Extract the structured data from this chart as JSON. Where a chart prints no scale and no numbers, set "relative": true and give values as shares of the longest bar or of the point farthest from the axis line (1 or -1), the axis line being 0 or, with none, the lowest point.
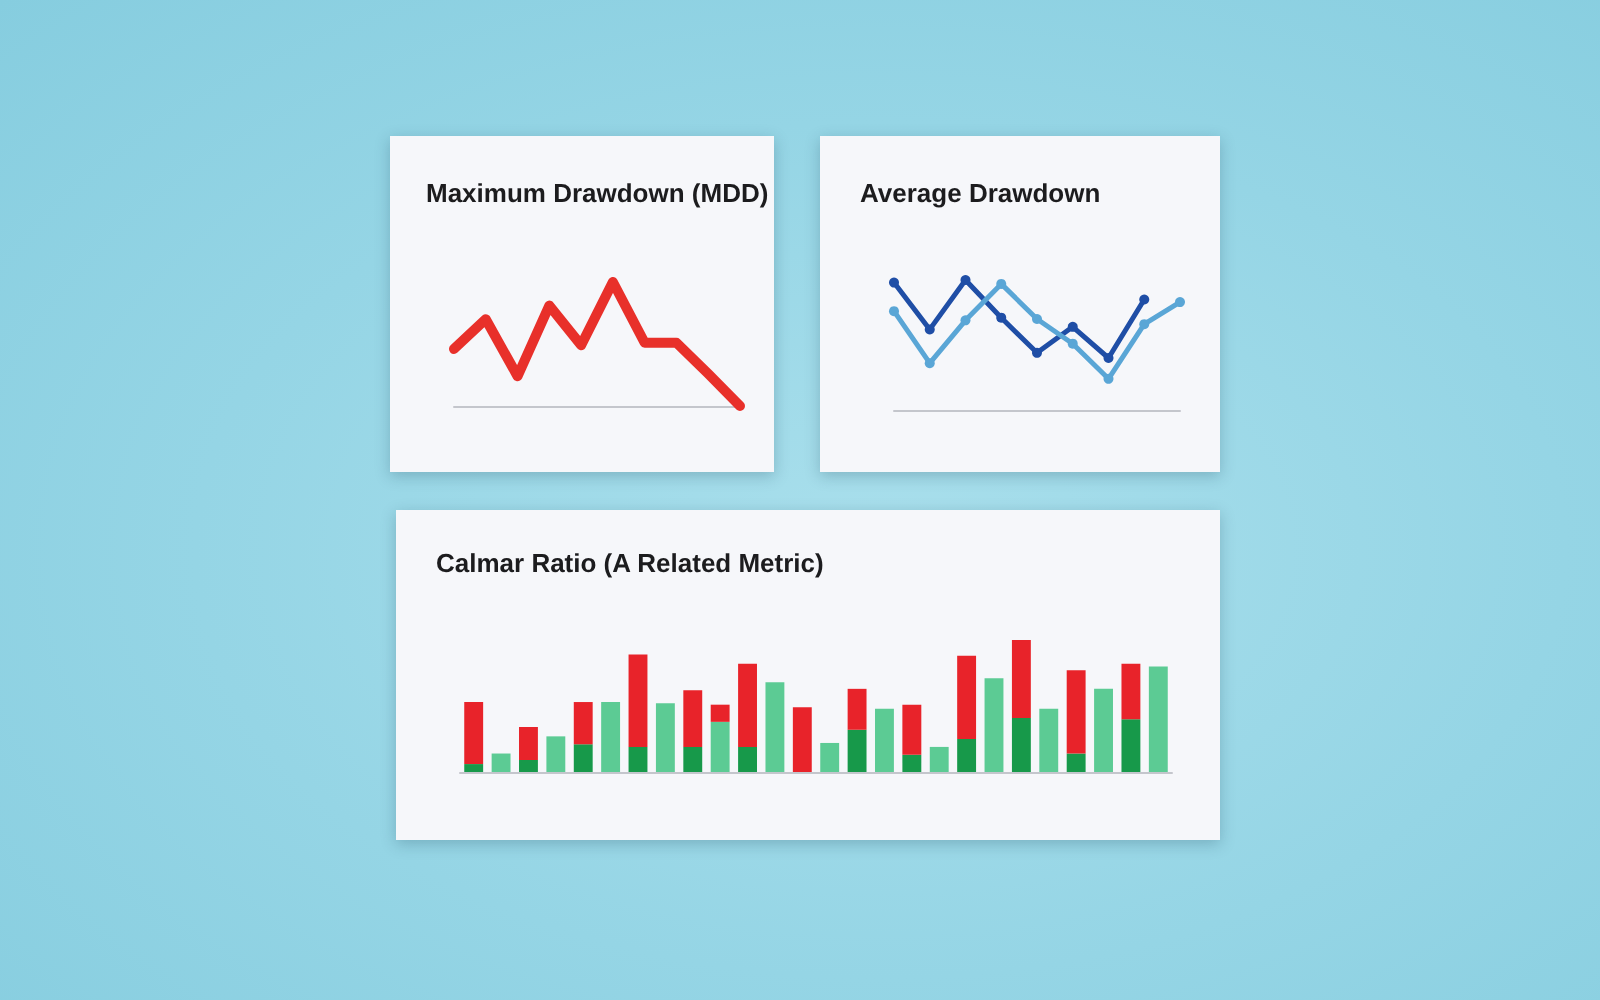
{
  "chart_data": [
    {
      "type": "line",
      "title": "Maximum Drawdown (MDD)",
      "relative": true,
      "categories": [
        null,
        null,
        null,
        null,
        null,
        null,
        null,
        null,
        null,
        null
      ],
      "color": "#e8302a",
      "values": [
        0.46,
        0.7,
        0.24,
        0.81,
        0.49,
        1,
        0.51,
        0.51,
        0.26,
        0
      ]
    },
    {
      "type": "line",
      "title": "Average Drawdown",
      "relative": true,
      "marker": "circle",
      "categories": [
        null,
        null,
        null,
        null,
        null,
        null,
        null,
        null,
        null
      ],
      "series": [
        {
          "color": "#1f4ea6",
          "values": [
            0.98,
            0.62,
            1,
            0.71,
            0.44,
            0.64,
            0.4,
            0.85,
            null
          ]
        },
        {
          "color": "#5aa6d6",
          "values": [
            0.76,
            0.36,
            0.69,
            0.97,
            0.7,
            0.51,
            0.24,
            0.66,
            0.83
          ]
        }
      ]
    },
    {
      "type": "bar",
      "title": "Calmar Ratio (A Related Metric)",
      "relative": true,
      "stacked": true,
      "categories": [
        null,
        null,
        null,
        null,
        null,
        null,
        null,
        null,
        null,
        null,
        null,
        null,
        null,
        null,
        null,
        null,
        null,
        null,
        null,
        null,
        null,
        null,
        null,
        null,
        null,
        null
      ],
      "series": [
        {
          "color": "#17994a",
          "values": [
            0.06,
            null,
            0.09,
            null,
            0.21,
            null,
            0.19,
            null,
            0.19,
            null,
            0.19,
            null,
            null,
            null,
            0.32,
            null,
            0.13,
            null,
            0.25,
            null,
            0.41,
            null,
            0.14,
            null,
            0.4,
            null
          ]
        },
        {
          "color": "#5ccb94",
          "values": [
            null,
            0.14,
            null,
            0.27,
            null,
            0.53,
            null,
            0.52,
            null,
            0.38,
            null,
            0.68,
            null,
            0.22,
            null,
            0.48,
            null,
            0.19,
            null,
            0.71,
            null,
            0.48,
            null,
            0.63,
            null,
            0.8
          ]
        },
        {
          "color": "#e8232a",
          "values": [
            0.47,
            null,
            0.25,
            null,
            0.32,
            null,
            0.7,
            null,
            0.43,
            0.13,
            0.63,
            null,
            0.49,
            null,
            0.31,
            null,
            0.38,
            null,
            0.63,
            null,
            0.59,
            null,
            0.63,
            null,
            0.42,
            null
          ]
        }
      ]
    }
  ]
}
